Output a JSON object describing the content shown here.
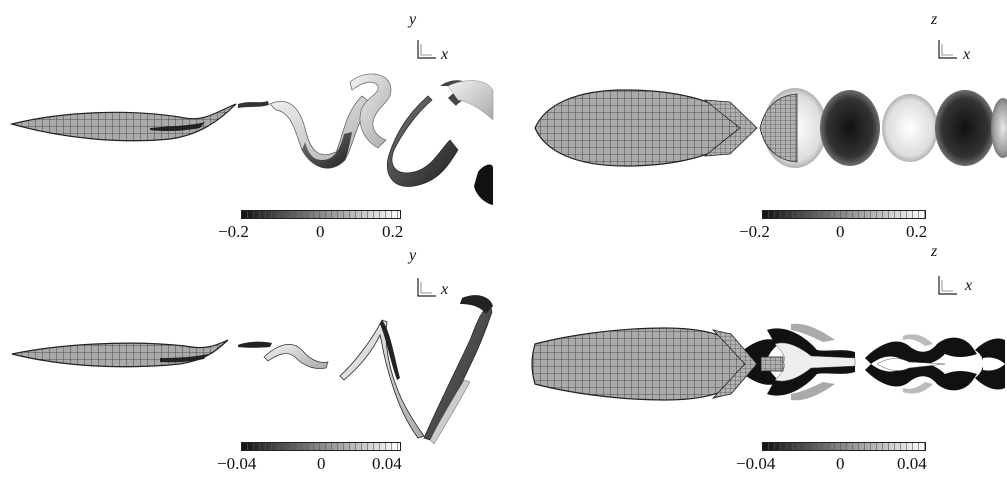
{
  "panels": [
    {
      "id": "top-left",
      "axes": {
        "vertical": "y",
        "horizontal": "x"
      },
      "colorbar": {
        "ticks": [
          "−0.2",
          "0",
          "0.2"
        ]
      }
    },
    {
      "id": "top-right",
      "axes": {
        "vertical": "z",
        "horizontal": "x"
      },
      "colorbar": {
        "ticks": [
          "−0.2",
          "0",
          "0.2"
        ]
      }
    },
    {
      "id": "bottom-left",
      "axes": {
        "vertical": "y",
        "horizontal": "x"
      },
      "colorbar": {
        "ticks": [
          "−0.04",
          "0",
          "0.04"
        ]
      }
    },
    {
      "id": "bottom-right",
      "axes": {
        "vertical": "z",
        "horizontal": "x"
      },
      "colorbar": {
        "ticks": [
          "−0.04",
          "0",
          "0.04"
        ]
      }
    }
  ],
  "colors": {
    "low": "#111111",
    "mid": "#888888",
    "high": "#ffffff",
    "mesh": "#333333",
    "body": "#a9a9a9"
  }
}
